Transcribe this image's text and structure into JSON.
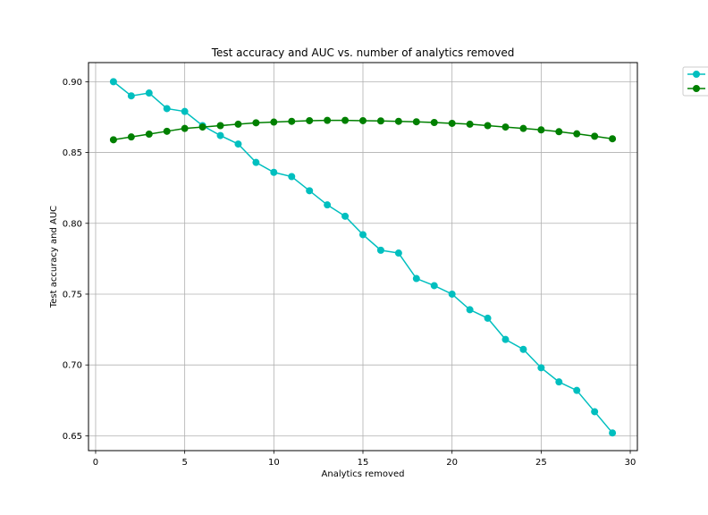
{
  "chart_data": {
    "type": "line",
    "title": "Test accuracy and AUC vs. number of analytics removed",
    "xlabel": "Analytics removed",
    "ylabel": "Test accuracy and AUC",
    "xlim": [
      -0.4,
      30.4
    ],
    "ylim": [
      0.6395,
      0.9135
    ],
    "xticks": [
      0,
      5,
      10,
      15,
      20,
      25,
      30
    ],
    "yticks": [
      0.65,
      0.7,
      0.75,
      0.8,
      0.85,
      0.9
    ],
    "ytick_labels": [
      "0.65",
      "0.70",
      "0.75",
      "0.80",
      "0.85",
      "0.90"
    ],
    "grid": true,
    "legend_position": "outside-top-right",
    "x": [
      1,
      2,
      3,
      4,
      5,
      6,
      7,
      8,
      9,
      10,
      11,
      12,
      13,
      14,
      15,
      16,
      17,
      18,
      19,
      20,
      21,
      22,
      23,
      24,
      25,
      26,
      27,
      28,
      29
    ],
    "series": [
      {
        "color": "#00bfbf",
        "marker": "circle",
        "values": [
          0.9,
          0.89,
          0.892,
          0.881,
          0.879,
          0.869,
          0.862,
          0.856,
          0.843,
          0.836,
          0.833,
          0.823,
          0.813,
          0.805,
          0.792,
          0.781,
          0.779,
          0.761,
          0.756,
          0.75,
          0.739,
          0.733,
          0.718,
          0.711,
          0.698,
          0.688,
          0.682,
          0.667,
          0.652
        ]
      },
      {
        "color": "#008000",
        "marker": "circle",
        "values": [
          0.859,
          0.861,
          0.863,
          0.865,
          0.867,
          0.868,
          0.869,
          0.87,
          0.871,
          0.8715,
          0.872,
          0.8725,
          0.8727,
          0.8727,
          0.8725,
          0.8723,
          0.872,
          0.8717,
          0.8712,
          0.8706,
          0.87,
          0.869,
          0.868,
          0.867,
          0.866,
          0.8647,
          0.8632,
          0.8615,
          0.8597
        ]
      }
    ]
  }
}
